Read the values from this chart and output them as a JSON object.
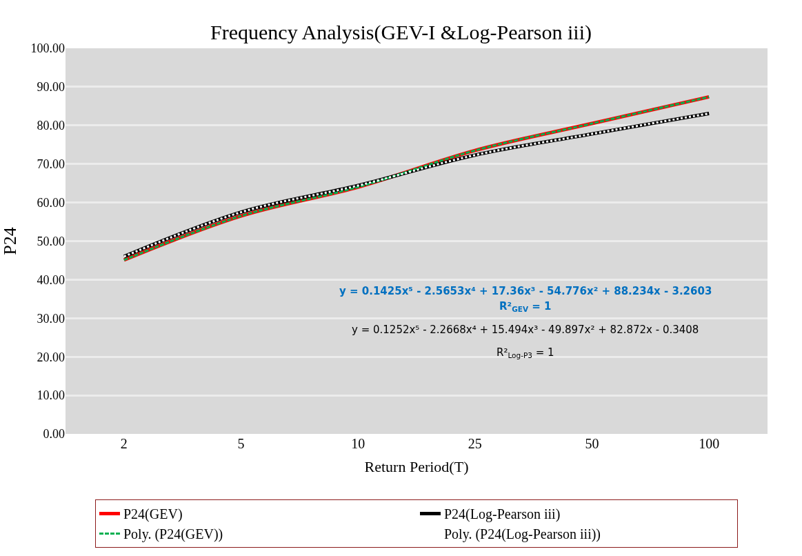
{
  "chart_data": {
    "type": "line",
    "title": "Frequency Analysis(GEV-I &Log-Pearson iii)",
    "xlabel": "Return Period(T)",
    "ylabel": "P24",
    "categories": [
      "2",
      "5",
      "10",
      "25",
      "50",
      "100"
    ],
    "series": [
      {
        "name": "P24(GEV)",
        "color": "#ff0000",
        "line_style": "solid",
        "values": [
          45.1,
          56.5,
          64.0,
          73.5,
          80.5,
          87.4
        ]
      },
      {
        "name": "P24(Log-Pearson iii)",
        "color": "#000000",
        "line_style": "solid",
        "values": [
          46.0,
          57.5,
          64.4,
          72.3,
          77.8,
          83.1
        ]
      },
      {
        "name": "Poly. (P24(GEV))",
        "color": "#00b050",
        "line_style": "dashed",
        "values": [
          45.1,
          56.5,
          64.0,
          73.5,
          80.5,
          87.4
        ]
      },
      {
        "name": "Poly. (P24(Log-Pearson iii))",
        "color": "#ffffff",
        "line_style": "dotted",
        "values": [
          46.0,
          57.5,
          64.4,
          72.3,
          77.8,
          83.1
        ]
      }
    ],
    "ylim": [
      0,
      100
    ],
    "yticks": [
      {
        "value": 0,
        "label": "0.00"
      },
      {
        "value": 10,
        "label": "10.00"
      },
      {
        "value": 20,
        "label": "20.00"
      },
      {
        "value": 30,
        "label": "30.00"
      },
      {
        "value": 40,
        "label": "40.00"
      },
      {
        "value": 50,
        "label": "50.00"
      },
      {
        "value": 60,
        "label": "60.00"
      },
      {
        "value": 70,
        "label": "70.00"
      },
      {
        "value": 80,
        "label": "80.00"
      },
      {
        "value": 90,
        "label": "90.00"
      },
      {
        "value": 100,
        "label": "100.00"
      }
    ],
    "grid": "y",
    "legend": "bottom",
    "marker": "none",
    "annotations": [
      "y = 0.1425x⁵ - 2.5653x⁴ + 17.36x³ - 54.776x² + 88.234x - 3.2603",
      "R²$_{GEV}$ = 1",
      "y = 0.1252x⁵ - 2.2668x⁴ + 15.494x³ - 49.897x² + 82.872x - 0.3408",
      "R²$_{Log-P3}$ = 1"
    ]
  }
}
